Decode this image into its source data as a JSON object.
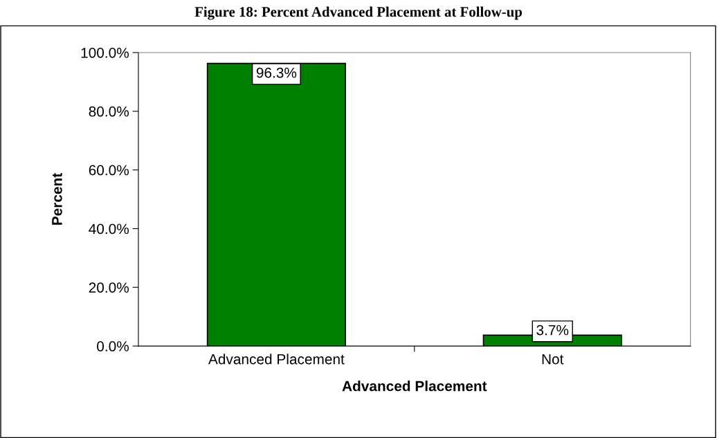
{
  "chart_data": {
    "type": "bar",
    "title": "Figure 18: Percent Advanced Placement at Follow-up",
    "xlabel": "Advanced Placement",
    "ylabel": "Percent",
    "categories": [
      "Advanced Placement",
      "Not"
    ],
    "values": [
      96.3,
      3.7
    ],
    "color": "#008000",
    "value_labels": [
      "96.3%",
      "3.7%"
    ],
    "ylim": [
      0,
      100
    ],
    "yticks": [
      {
        "value": 0,
        "label": "0.0%"
      },
      {
        "value": 20,
        "label": "20.0%"
      },
      {
        "value": 40,
        "label": "40.0%"
      },
      {
        "value": 60,
        "label": "60.0%"
      },
      {
        "value": 80,
        "label": "80.0%"
      },
      {
        "value": 100,
        "label": "100.0%"
      }
    ],
    "grid": false,
    "legend": false
  }
}
